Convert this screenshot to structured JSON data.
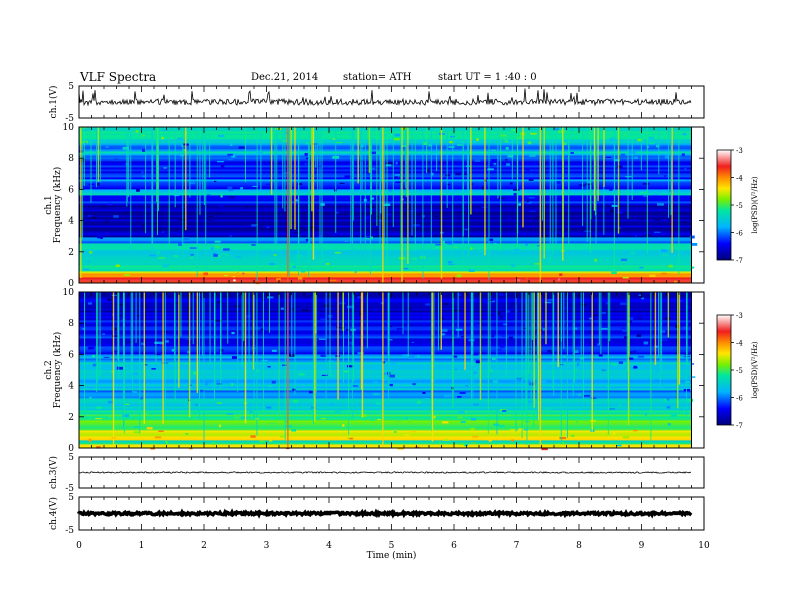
{
  "header": {
    "title": "VLF  Spectra",
    "date": "Dec.21, 2014",
    "station": "station= ATH",
    "start_ut": "start  UT  =   1  :40 : 0"
  },
  "chart_data": [
    {
      "type": "line",
      "panel": "ch1-waveform",
      "ylabel": "ch.1(V)",
      "ylim": [
        -5,
        5
      ],
      "yticks": [
        "5",
        "-5"
      ],
      "xlim": [
        0,
        10
      ]
    },
    {
      "type": "heatmap",
      "panel": "ch1-spectrogram",
      "ylabel": "Frequency  (kHz)",
      "ylabel2": "ch.1",
      "ylim": [
        0,
        10
      ],
      "yticks": [
        "0",
        "2",
        "4",
        "6",
        "8",
        "10"
      ],
      "xlim": [
        0,
        9.8
      ],
      "colorbar": {
        "label": "log(PSD)(V²/Hz)",
        "range": [
          -7,
          -3
        ],
        "ticks": [
          "-7",
          "-6",
          "-5",
          "-4",
          "-3"
        ]
      }
    },
    {
      "type": "heatmap",
      "panel": "ch2-spectrogram",
      "ylabel": "Frequency  (kHz)",
      "ylabel2": "ch.2",
      "ylim": [
        0,
        10
      ],
      "yticks": [
        "0",
        "2",
        "4",
        "6",
        "8",
        "10"
      ],
      "xlim": [
        0,
        9.8
      ],
      "colorbar": {
        "label": "log(PSD)(V²/Hz)",
        "range": [
          -7,
          -3
        ],
        "ticks": [
          "-7",
          "-6",
          "-5",
          "-4",
          "-3"
        ]
      }
    },
    {
      "type": "line",
      "panel": "ch3-waveform",
      "ylabel": "ch.3(V)",
      "ylim": [
        -5,
        5
      ],
      "yticks": [
        "5",
        "-5"
      ],
      "xlim": [
        0,
        10
      ]
    },
    {
      "type": "line",
      "panel": "ch4-waveform",
      "ylabel": "ch.4(V)",
      "ylim": [
        -5,
        5
      ],
      "yticks": [
        "5",
        "-5"
      ],
      "xlim": [
        0,
        10
      ]
    }
  ],
  "xaxis": {
    "label": "Time  (min)",
    "ticks": [
      "0",
      "1",
      "2",
      "3",
      "4",
      "5",
      "6",
      "7",
      "8",
      "9",
      "10"
    ]
  }
}
